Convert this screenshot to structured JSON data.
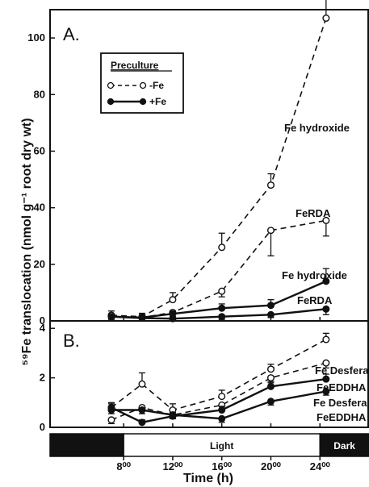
{
  "chart_data": [
    {
      "panel": "A.",
      "type": "line",
      "ylim": [
        0,
        110
      ],
      "yticks": [
        "0",
        "20",
        "40",
        "60",
        "80",
        "100"
      ],
      "legend": {
        "title": "Preculture",
        "entries": [
          {
            "label": "-Fe",
            "style": "dashed-open"
          },
          {
            "label": "+Fe",
            "style": "solid-filled"
          }
        ]
      },
      "series": [
        {
          "name": "Fe hydroxide",
          "preculture": "-Fe",
          "style": "dashed-open",
          "x": [
            7,
            9.5,
            12,
            16,
            20,
            24.5
          ],
          "y": [
            2,
            1.5,
            7.5,
            26,
            48,
            107
          ],
          "err": [
            1.5,
            1.2,
            2.5,
            5,
            4,
            20
          ]
        },
        {
          "name": "FeRDA",
          "preculture": "-Fe",
          "style": "dashed-open",
          "x": [
            7,
            9.5,
            12,
            16,
            20,
            24.5
          ],
          "y": [
            2,
            1.2,
            3,
            10.5,
            32,
            35.5
          ],
          "err": [
            1.2,
            1,
            1.5,
            2,
            9,
            5.5
          ]
        },
        {
          "name": "Fe hydroxide",
          "preculture": "+Fe",
          "style": "solid-filled",
          "x": [
            7,
            9.5,
            12,
            16,
            20,
            24.5
          ],
          "y": [
            1.5,
            1.2,
            2.5,
            4.5,
            5.5,
            14
          ],
          "err": [
            1,
            1,
            1,
            1.5,
            2,
            4.5
          ]
        },
        {
          "name": "FeRDA",
          "preculture": "+Fe",
          "style": "solid-filled",
          "x": [
            7,
            9.5,
            12,
            16,
            20,
            24.5
          ],
          "y": [
            1.5,
            1,
            0.8,
            1.5,
            2.2,
            4.2
          ],
          "err": [
            1,
            1,
            1,
            1,
            1,
            2
          ]
        }
      ],
      "annotations": [
        "Fe hydroxide",
        "FeRDA",
        "Fe hydroxide",
        "FeRDA"
      ]
    },
    {
      "panel": "B.",
      "type": "line",
      "ylim": [
        0,
        4.3
      ],
      "yticks": [
        "0",
        "2",
        "4"
      ],
      "series": [
        {
          "name": "Fe Desferal",
          "preculture": "-Fe",
          "style": "dashed-open",
          "x": [
            7,
            9.5,
            12,
            16,
            20,
            24.5
          ],
          "y": [
            0.8,
            1.75,
            0.7,
            1.25,
            2.35,
            3.55
          ],
          "err": [
            0.2,
            0.45,
            0.25,
            0.25,
            0.2,
            0.25
          ]
        },
        {
          "name": "FeEDDHA",
          "preculture": "-Fe",
          "style": "dashed-open",
          "x": [
            7,
            9.5,
            12,
            16,
            20,
            24.5
          ],
          "y": [
            0.3,
            0.8,
            0.5,
            0.9,
            2.0,
            2.6
          ],
          "err": [
            0.15,
            0.15,
            0.15,
            0.2,
            0.2,
            0.2
          ]
        },
        {
          "name": "Fe Desferal",
          "preculture": "+Fe",
          "style": "solid-filled",
          "x": [
            7,
            9.5,
            12,
            16,
            20,
            24.5
          ],
          "y": [
            0.8,
            0.2,
            0.45,
            0.7,
            1.65,
            1.95
          ],
          "err": [
            0.15,
            0.1,
            0.15,
            0.15,
            0.2,
            0.2
          ]
        },
        {
          "name": "FeEDDHA",
          "preculture": "+Fe",
          "style": "solid-filled",
          "x": [
            7,
            9.5,
            12,
            16,
            20,
            24.5
          ],
          "y": [
            0.7,
            0.7,
            0.5,
            0.35,
            1.05,
            1.45
          ],
          "err": [
            0.15,
            0.15,
            0.15,
            0.15,
            0.15,
            0.15
          ]
        }
      ],
      "annotations": [
        "Fe Desferal",
        "FeEDDHA",
        "Fe Desferal",
        "FeEDDHA"
      ]
    }
  ],
  "x_axis": {
    "label": "Time (h)",
    "ticks": [
      {
        "value": 8,
        "label": "8⁰⁰"
      },
      {
        "value": 12,
        "label": "12⁰⁰"
      },
      {
        "value": 16,
        "label": "16⁰⁰"
      },
      {
        "value": 20,
        "label": "20⁰⁰"
      },
      {
        "value": 24,
        "label": "24⁰⁰"
      }
    ],
    "xlim": [
      2,
      28
    ]
  },
  "y_axis_label": "⁵⁹Fe translocation (nmol g⁻¹ root dry wt)",
  "light_dark_bar": [
    {
      "from": 2,
      "to": 8,
      "state": "dark",
      "label": ""
    },
    {
      "from": 8,
      "to": 24,
      "state": "light",
      "label": "Light"
    },
    {
      "from": 24,
      "to": 28,
      "state": "dark",
      "label": "Dark"
    }
  ],
  "colors": {
    "ink": "#111111",
    "background": "#ffffff",
    "dark_period": "#111111",
    "light_period": "#ffffff"
  }
}
